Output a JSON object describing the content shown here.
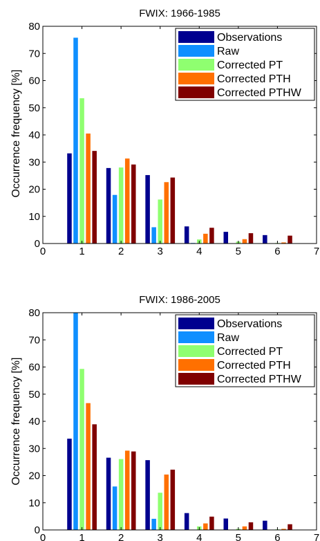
{
  "chart_data": [
    {
      "type": "bar",
      "title": "FWIX: 1966-1985",
      "xlabel": "",
      "ylabel": "Occurrence frequency [%]",
      "xlim": [
        0,
        7
      ],
      "ylim": [
        0,
        80
      ],
      "xticks": [
        "0",
        "1",
        "2",
        "3",
        "4",
        "5",
        "6",
        "7"
      ],
      "yticks": [
        "0",
        "10",
        "20",
        "30",
        "40",
        "50",
        "60",
        "70",
        "80"
      ],
      "categories": [
        1,
        2,
        3,
        4,
        5,
        6
      ],
      "grid": false,
      "legend_position": "top-right",
      "series": [
        {
          "name": "Observations",
          "color": "#00008f",
          "values": [
            33.2,
            27.8,
            25.2,
            6.3,
            4.3,
            3.1
          ]
        },
        {
          "name": "Raw",
          "color": "#0f8fff",
          "values": [
            75.8,
            17.9,
            6.0,
            0.2,
            0.0,
            0.0
          ]
        },
        {
          "name": "Corrected PT",
          "color": "#8fff70",
          "values": [
            53.5,
            28.0,
            16.2,
            1.5,
            0.7,
            0.2
          ]
        },
        {
          "name": "Corrected PTH",
          "color": "#ff7000",
          "values": [
            40.5,
            31.3,
            22.6,
            3.6,
            1.6,
            0.4
          ]
        },
        {
          "name": "Corrected PTHW",
          "color": "#800000",
          "values": [
            34.1,
            29.1,
            24.3,
            5.8,
            3.8,
            2.9
          ]
        }
      ]
    },
    {
      "type": "bar",
      "title": "FWIX: 1986-2005",
      "xlabel": "",
      "ylabel": "Occurrence frequency [%]",
      "xlim": [
        0,
        7
      ],
      "ylim": [
        0,
        80
      ],
      "xticks": [
        "0",
        "1",
        "2",
        "3",
        "4",
        "5",
        "6",
        "7"
      ],
      "yticks": [
        "0",
        "10",
        "20",
        "30",
        "40",
        "50",
        "60",
        "70",
        "80"
      ],
      "categories": [
        1,
        2,
        3,
        4,
        5,
        6
      ],
      "grid": false,
      "legend_position": "top-right",
      "series": [
        {
          "name": "Observations",
          "color": "#00008f",
          "values": [
            33.6,
            26.6,
            25.7,
            6.2,
            4.2,
            3.4
          ]
        },
        {
          "name": "Raw",
          "color": "#0f8fff",
          "values": [
            80.0,
            16.0,
            4.1,
            0.1,
            0.0,
            0.0
          ]
        },
        {
          "name": "Corrected PT",
          "color": "#8fff70",
          "values": [
            59.3,
            26.1,
            13.7,
            1.3,
            0.4,
            0.2
          ]
        },
        {
          "name": "Corrected PTH",
          "color": "#ff7000",
          "values": [
            46.7,
            29.2,
            20.4,
            2.4,
            1.3,
            0.4
          ]
        },
        {
          "name": "Corrected PTHW",
          "color": "#800000",
          "values": [
            38.9,
            28.9,
            22.2,
            4.9,
            2.8,
            2.1
          ]
        }
      ]
    }
  ]
}
